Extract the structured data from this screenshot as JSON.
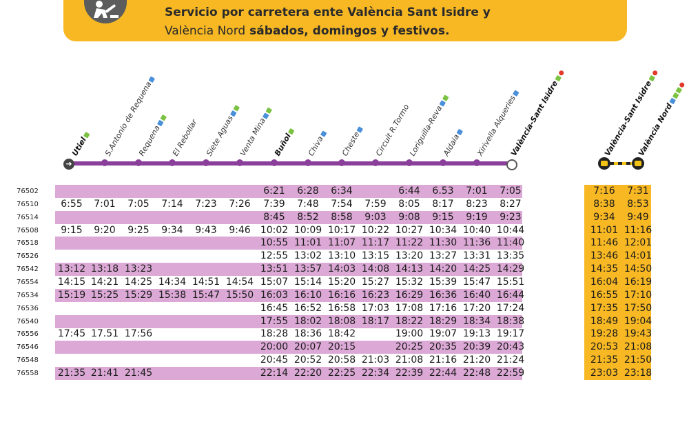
{
  "notice": {
    "line1": "Servicio por carretera ente València Sant Isidre y",
    "line2_normal": "València Nord",
    "line2_bold": "sábados, domingos y festivos.",
    "icon": "roadworks-icon"
  },
  "stations": [
    {
      "name": "Utiel",
      "bold": true,
      "badges": [
        "green"
      ]
    },
    {
      "name": "S.Antonio de Requena",
      "bold": false,
      "badges": [
        "blue"
      ]
    },
    {
      "name": "Requena",
      "bold": false,
      "badges": [
        "blue",
        "green"
      ]
    },
    {
      "name": "El Rebollar",
      "bold": false,
      "badges": []
    },
    {
      "name": "Siete Aguas",
      "bold": false,
      "badges": [
        "blue",
        "green"
      ]
    },
    {
      "name": "Venta Mina",
      "bold": false,
      "badges": [
        "blue",
        "green"
      ]
    },
    {
      "name": "Buñol",
      "bold": true,
      "badges": [
        "green"
      ]
    },
    {
      "name": "Chiva",
      "bold": false,
      "badges": [
        "blue"
      ]
    },
    {
      "name": "Cheste",
      "bold": false,
      "badges": [
        "blue"
      ]
    },
    {
      "name": "Circuit R.Tormo",
      "bold": false,
      "badges": []
    },
    {
      "name": "Loriguilla-Reva",
      "bold": false,
      "badges": [
        "blue",
        "green"
      ]
    },
    {
      "name": "Aldaia",
      "bold": false,
      "badges": [
        "blue"
      ]
    },
    {
      "name": "Xirivella Alqueries",
      "bold": false,
      "badges": [
        "blue"
      ]
    },
    {
      "name": "València-Sant Isidre",
      "bold": true,
      "badges": [
        "green",
        "red"
      ]
    },
    {
      "name": "València-Sant Isidre",
      "bold": true,
      "badges": [
        "green",
        "red"
      ]
    },
    {
      "name": "València Nord",
      "bold": true,
      "badges": [
        "blue",
        "green",
        "green",
        "red"
      ]
    }
  ],
  "trains": [
    {
      "no": "76502",
      "lilac": true,
      "times": [
        "",
        "",
        "",
        "",
        "",
        "",
        "6:21",
        "6:28",
        "6:34",
        "",
        "6:44",
        "6.53",
        "7:01",
        "7:05",
        "7:16",
        "7:31"
      ]
    },
    {
      "no": "76510",
      "lilac": false,
      "times": [
        "6:55",
        "7:01",
        "7:05",
        "7:14",
        "7:23",
        "7:26",
        "7:39",
        "7:48",
        "7:54",
        "7:59",
        "8:05",
        "8:17",
        "8:23",
        "8:27",
        "8:38",
        "8:53"
      ]
    },
    {
      "no": "76514",
      "lilac": true,
      "times": [
        "",
        "",
        "",
        "",
        "",
        "",
        "8:45",
        "8:52",
        "8:58",
        "9:03",
        "9:08",
        "9:15",
        "9:19",
        "9:23",
        "9:34",
        "9:49"
      ]
    },
    {
      "no": "76508",
      "lilac": false,
      "times": [
        "9:15",
        "9:20",
        "9:25",
        "9:34",
        "9:43",
        "9:46",
        "10:02",
        "10:09",
        "10:17",
        "10:22",
        "10:27",
        "10:34",
        "10:40",
        "10:44",
        "11:01",
        "11:16"
      ]
    },
    {
      "no": "76518",
      "lilac": true,
      "times": [
        "",
        "",
        "",
        "",
        "",
        "",
        "10:55",
        "11:01",
        "11:07",
        "11:17",
        "11:22",
        "11:30",
        "11:36",
        "11:40",
        "11:46",
        "12:01"
      ]
    },
    {
      "no": "76526",
      "lilac": false,
      "times": [
        "",
        "",
        "",
        "",
        "",
        "",
        "12:55",
        "13:02",
        "13:10",
        "13:15",
        "13:20",
        "13:27",
        "13:31",
        "13:35",
        "13:46",
        "14:01"
      ]
    },
    {
      "no": "76542",
      "lilac": true,
      "times": [
        "13:12",
        "13:18",
        "13:23",
        "",
        "",
        "",
        "13:51",
        "13:57",
        "14:03",
        "14:08",
        "14:13",
        "14:20",
        "14:25",
        "14:29",
        "14:35",
        "14:50"
      ]
    },
    {
      "no": "76554",
      "lilac": false,
      "times": [
        "14:15",
        "14:21",
        "14:25",
        "14:34",
        "14:51",
        "14:54",
        "15:07",
        "15:14",
        "15:20",
        "15:27",
        "15:32",
        "15:39",
        "15:47",
        "15:51",
        "16:04",
        "16:19"
      ]
    },
    {
      "no": "76534",
      "lilac": true,
      "times": [
        "15:19",
        "15:25",
        "15:29",
        "15:38",
        "15:47",
        "15:50",
        "16:03",
        "16:10",
        "16:16",
        "16:23",
        "16:29",
        "16:36",
        "16:40",
        "16:44",
        "16:55",
        "17:10"
      ]
    },
    {
      "no": "76536",
      "lilac": false,
      "times": [
        "",
        "",
        "",
        "",
        "",
        "",
        "16:45",
        "16:52",
        "16:58",
        "17:03",
        "17:08",
        "17:16",
        "17:20",
        "17:24",
        "17:35",
        "17:50"
      ]
    },
    {
      "no": "76540",
      "lilac": true,
      "times": [
        "",
        "",
        "",
        "",
        "",
        "",
        "17:55",
        "18:02",
        "18:08",
        "18:17",
        "18:22",
        "18:29",
        "18:34",
        "18:38",
        "18:49",
        "19:04"
      ]
    },
    {
      "no": "76556",
      "lilac": false,
      "times": [
        "17:45",
        "17.51",
        "17:56",
        "",
        "",
        "",
        "18:28",
        "18:36",
        "18:42",
        "",
        "19:00",
        "19:07",
        "19:13",
        "19:17",
        "19:28",
        "19:43"
      ]
    },
    {
      "no": "76546",
      "lilac": true,
      "times": [
        "",
        "",
        "",
        "",
        "",
        "",
        "20:00",
        "20:07",
        "20:15",
        "",
        "20:25",
        "20:35",
        "20:39",
        "20:43",
        "20:53",
        "21:08"
      ]
    },
    {
      "no": "76548",
      "lilac": false,
      "times": [
        "",
        "",
        "",
        "",
        "",
        "",
        "20:45",
        "20:52",
        "20:58",
        "21:03",
        "21:08",
        "21:16",
        "21:20",
        "21:24",
        "21:35",
        "21:50"
      ]
    },
    {
      "no": "76558",
      "lilac": true,
      "times": [
        "21:35",
        "21:41",
        "21:45",
        "",
        "",
        "",
        "22:14",
        "22:20",
        "22:25",
        "22:34",
        "22:39",
        "22:44",
        "22:48",
        "22:59",
        "23:03",
        "23:18"
      ]
    }
  ],
  "colors": {
    "accent": "#f7b824",
    "line": "#8a3f9a",
    "row_lilac": "#dca9d6"
  }
}
